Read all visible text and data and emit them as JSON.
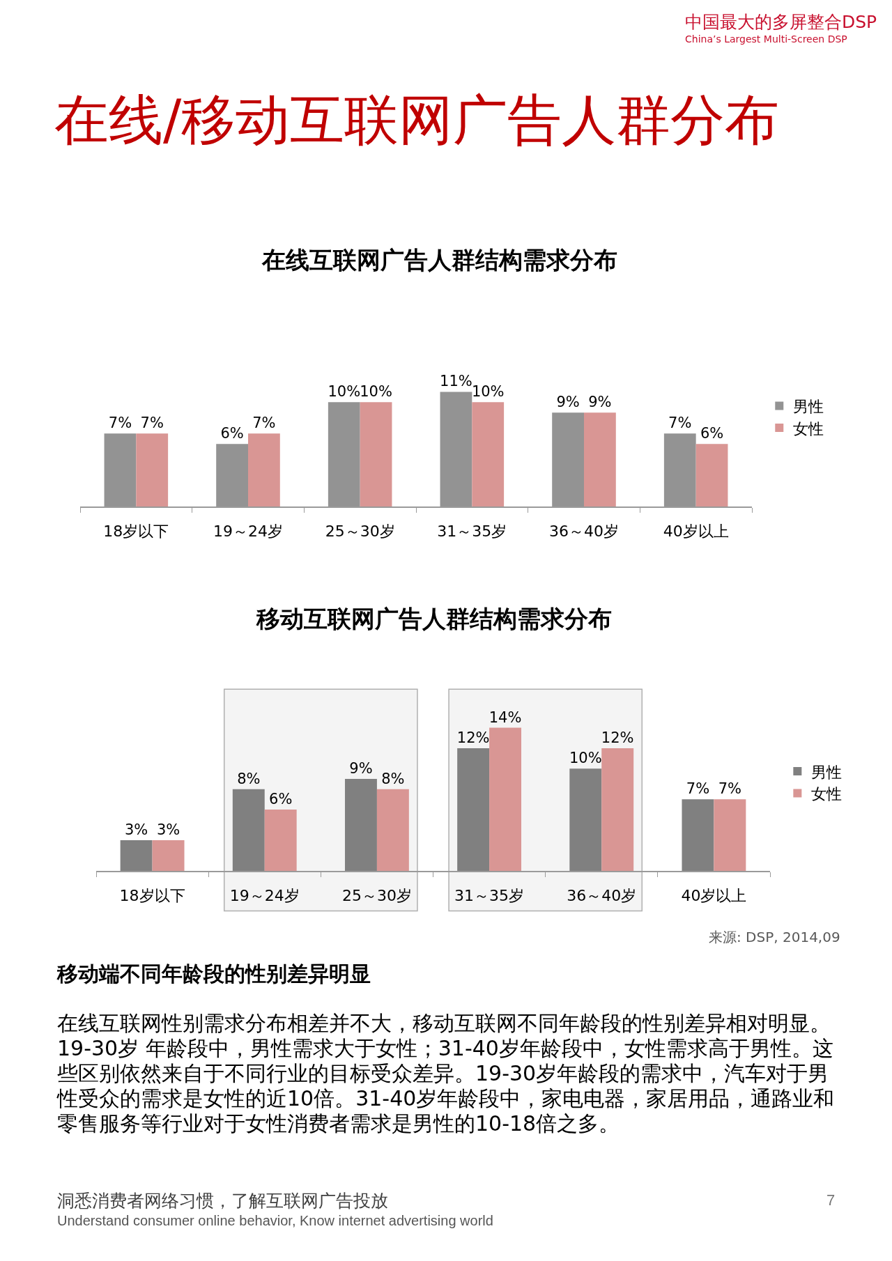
{
  "chart_data": [
    {
      "type": "other",
      "title": "在线/移动互联网广告人群分布",
      "annotations": [
        "中国最大的多屏整合DSP",
        "China’s Largest Multi-Screen DSP"
      ]
    },
    {
      "type": "bar",
      "title": "在线互联网广告人群结构需求分布",
      "categories": [
        "18岁以下",
        "19～24岁",
        "25～30岁",
        "31～35岁",
        "36～40岁",
        "40岁以上"
      ],
      "series": [
        {
          "name": "男性",
          "color": "#939393",
          "values": [
            7,
            6,
            10,
            11,
            9,
            7
          ],
          "value_labels": [
            "7%",
            "6%",
            "10%",
            "11%",
            "9%",
            "7%"
          ]
        },
        {
          "name": "女性",
          "color": "#d99694",
          "values": [
            7,
            7,
            10,
            10,
            9,
            6
          ],
          "value_labels": [
            "7%",
            "7%",
            "10%",
            "10%",
            "9%",
            "6%"
          ]
        }
      ],
      "legend": "right",
      "tick_labels": "x"
    },
    {
      "type": "bar",
      "title": "移动互联网广告人群结构需求分布",
      "categories": [
        "18岁以下",
        "19～24岁",
        "25～30岁",
        "31～35岁",
        "36～40岁",
        "40岁以上"
      ],
      "series": [
        {
          "name": "男性",
          "color": "#808080",
          "values": [
            3,
            8,
            9,
            12,
            10,
            7
          ],
          "value_labels": [
            "3%",
            "8%",
            "9%",
            "12%",
            "10%",
            "7%"
          ]
        },
        {
          "name": "女性",
          "color": "#d99694",
          "values": [
            3,
            6,
            8,
            14,
            12,
            7
          ],
          "value_labels": [
            "3%",
            "6%",
            "8%",
            "14%",
            "12%",
            "7%"
          ]
        }
      ],
      "bands": [
        {
          "axis": "x",
          "from": "19～24岁",
          "to": "25～30岁",
          "color": "#f4f4f4"
        },
        {
          "axis": "x",
          "from": "31～35岁",
          "to": "36～40岁",
          "color": "#f4f4f4"
        }
      ],
      "legend": "right",
      "tick_labels": "x",
      "annotations": [
        "来源: DSP, 2014,09"
      ]
    },
    {
      "type": "other",
      "title": "移动端不同年龄段的性别差异明显",
      "annotations": [
        "在线互联网性别需求分布相差并不大，移动互联网不同年龄段的性别差异相对明显。19-30岁 年龄段中，男性需求大于女性；31-40岁年龄段中，女性需求高于男性。这些区别依然来自于不同行业的目标受众差异。19-30岁年龄段的需求中，汽车对于男性受众的需求是女性的近10倍。31-40岁年龄段中，家电电器，家居用品，通路业和零售服务等行业对于女性消费者需求是男性的10-18倍之多。",
        "洞悉消费者网络习惯，了解互联网广告投放",
        "Understand consumer online behavior, Know internet advertising world",
        "7"
      ]
    }
  ]
}
